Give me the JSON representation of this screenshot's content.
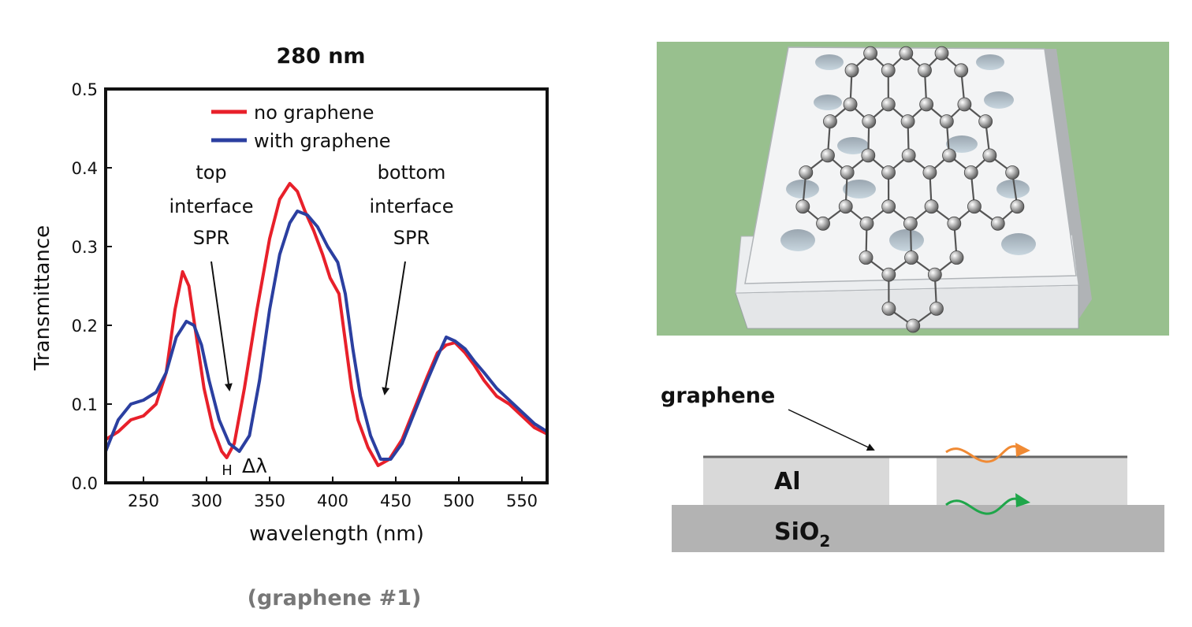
{
  "chart_data": {
    "type": "line",
    "title": "280 nm",
    "subtitle": "(graphene #1)",
    "xlabel": "wavelength (nm)",
    "ylabel": "Transmittance",
    "xlim": [
      220,
      570
    ],
    "ylim": [
      0,
      0.5
    ],
    "xticks": [
      "250",
      "300",
      "350",
      "400",
      "450",
      "500",
      "550"
    ],
    "yticks": [
      "0.0",
      "0.1",
      "0.2",
      "0.3",
      "0.4",
      "0.5"
    ],
    "grid": false,
    "legend": "top-center",
    "series": [
      {
        "name": "no graphene",
        "color": "#e8202a",
        "points": [
          [
            220,
            0.055
          ],
          [
            230,
            0.065
          ],
          [
            240,
            0.08
          ],
          [
            250,
            0.085
          ],
          [
            260,
            0.1
          ],
          [
            268,
            0.14
          ],
          [
            275,
            0.22
          ],
          [
            281,
            0.268
          ],
          [
            286,
            0.25
          ],
          [
            292,
            0.185
          ],
          [
            298,
            0.12
          ],
          [
            305,
            0.07
          ],
          [
            312,
            0.04
          ],
          [
            316,
            0.032
          ],
          [
            322,
            0.05
          ],
          [
            330,
            0.12
          ],
          [
            340,
            0.22
          ],
          [
            350,
            0.31
          ],
          [
            358,
            0.36
          ],
          [
            366,
            0.38
          ],
          [
            372,
            0.37
          ],
          [
            378,
            0.345
          ],
          [
            385,
            0.32
          ],
          [
            392,
            0.29
          ],
          [
            398,
            0.26
          ],
          [
            405,
            0.24
          ],
          [
            410,
            0.18
          ],
          [
            415,
            0.12
          ],
          [
            420,
            0.08
          ],
          [
            428,
            0.045
          ],
          [
            436,
            0.022
          ],
          [
            445,
            0.03
          ],
          [
            455,
            0.055
          ],
          [
            465,
            0.095
          ],
          [
            475,
            0.135
          ],
          [
            483,
            0.165
          ],
          [
            490,
            0.175
          ],
          [
            497,
            0.178
          ],
          [
            505,
            0.165
          ],
          [
            512,
            0.15
          ],
          [
            520,
            0.13
          ],
          [
            530,
            0.11
          ],
          [
            540,
            0.1
          ],
          [
            550,
            0.085
          ],
          [
            560,
            0.07
          ],
          [
            570,
            0.062
          ]
        ]
      },
      {
        "name": "with graphene",
        "color": "#2b3fa0",
        "points": [
          [
            220,
            0.04
          ],
          [
            230,
            0.08
          ],
          [
            240,
            0.1
          ],
          [
            250,
            0.105
          ],
          [
            260,
            0.115
          ],
          [
            268,
            0.14
          ],
          [
            276,
            0.185
          ],
          [
            284,
            0.205
          ],
          [
            290,
            0.2
          ],
          [
            296,
            0.175
          ],
          [
            302,
            0.13
          ],
          [
            310,
            0.08
          ],
          [
            318,
            0.05
          ],
          [
            326,
            0.04
          ],
          [
            334,
            0.06
          ],
          [
            342,
            0.13
          ],
          [
            350,
            0.22
          ],
          [
            358,
            0.29
          ],
          [
            366,
            0.33
          ],
          [
            372,
            0.345
          ],
          [
            380,
            0.34
          ],
          [
            388,
            0.325
          ],
          [
            396,
            0.3
          ],
          [
            404,
            0.28
          ],
          [
            410,
            0.24
          ],
          [
            416,
            0.17
          ],
          [
            422,
            0.11
          ],
          [
            430,
            0.06
          ],
          [
            438,
            0.03
          ],
          [
            446,
            0.03
          ],
          [
            455,
            0.05
          ],
          [
            465,
            0.09
          ],
          [
            475,
            0.13
          ],
          [
            483,
            0.16
          ],
          [
            490,
            0.185
          ],
          [
            497,
            0.18
          ],
          [
            505,
            0.17
          ],
          [
            512,
            0.155
          ],
          [
            520,
            0.14
          ],
          [
            530,
            0.12
          ],
          [
            540,
            0.105
          ],
          [
            550,
            0.09
          ],
          [
            560,
            0.075
          ],
          [
            570,
            0.065
          ]
        ]
      }
    ],
    "annotations": [
      {
        "lines": [
          "top",
          "interface",
          "SPR"
        ],
        "arrow_to": [
          317,
          0.115
        ]
      },
      {
        "lines": [
          "bottom",
          "interface",
          "SPR"
        ],
        "arrow_to": [
          438,
          0.11
        ]
      },
      {
        "text": "H",
        "at": [
          313,
          0.015
        ]
      },
      {
        "text": "Δλ",
        "at": [
          330,
          0.017
        ]
      }
    ]
  },
  "diagram": {
    "layer_label_graphene": "graphene",
    "layer_label_al": "Al",
    "layer_label_sio2_base": "SiO",
    "layer_label_sio2_sub": "2",
    "colors": {
      "background_green": "#98c08e",
      "al": "#d9d9d9",
      "sio2": "#b3b3b3",
      "graphene_line": "#666666",
      "wave_top": "#f08a34",
      "wave_bottom": "#1fa64a",
      "atom": "#9a9a9a"
    }
  }
}
